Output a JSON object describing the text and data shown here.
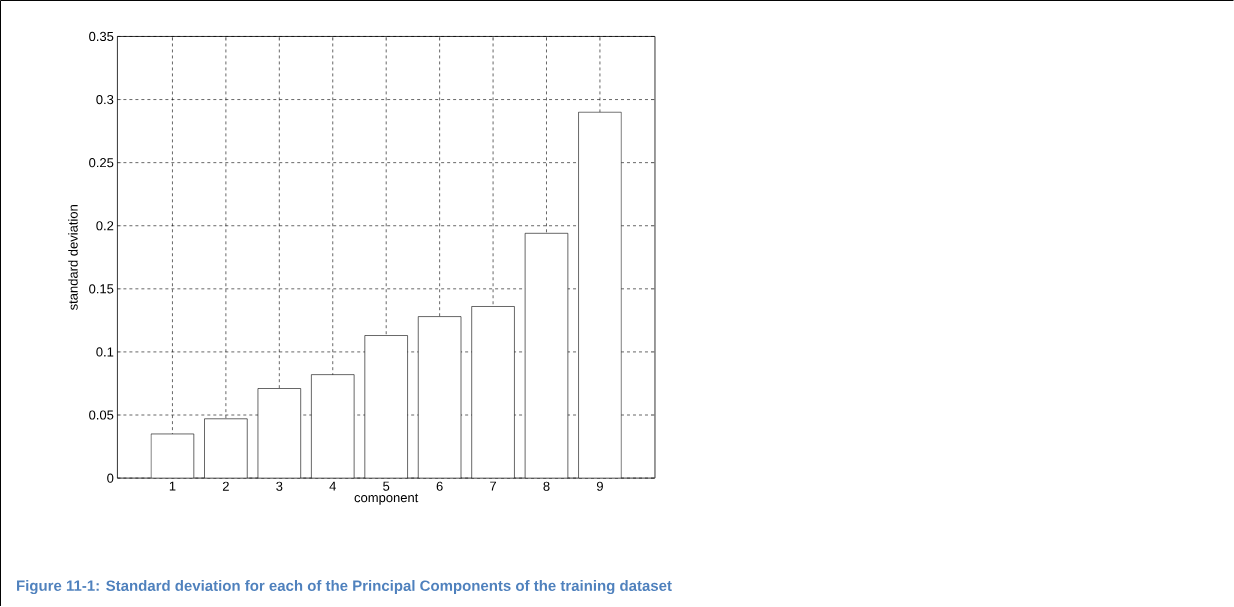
{
  "chart_data": {
    "type": "bar",
    "xlabel": "component",
    "ylabel": "standard deviation",
    "annotations": [
      "Figure 11-1: Standard deviation for each of the Principal Components of the training dataset"
    ],
    "categories": [
      "1",
      "2",
      "3",
      "4",
      "5",
      "6",
      "7",
      "8",
      "9"
    ],
    "values": [
      0.035,
      0.047,
      0.071,
      0.082,
      0.113,
      0.128,
      0.136,
      0.194,
      0.29
    ],
    "color": "#ffffff",
    "ylim": [
      0,
      0.35
    ],
    "yticks": [
      0,
      0.05,
      0.1,
      0.15,
      0.2,
      0.25,
      0.3,
      0.35
    ],
    "grid": true
  }
}
